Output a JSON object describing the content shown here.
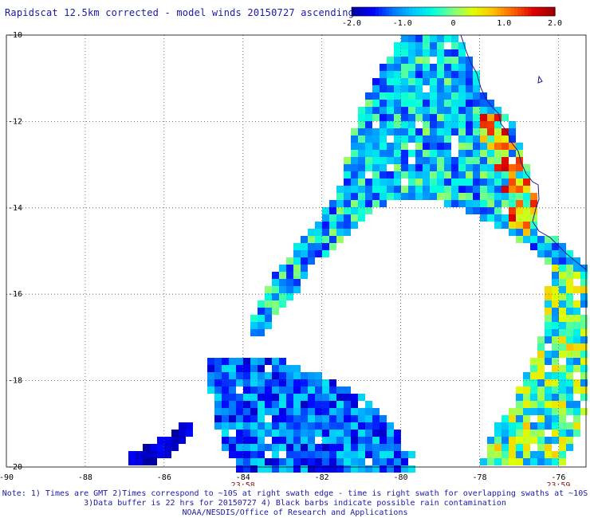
{
  "title": "Rapidscat 12.5km corrected - model winds 20150727 ascending",
  "colorbar": {
    "min": -2.0,
    "max": 2.0,
    "tick_labels": [
      "-2.0",
      "-1.0",
      "0",
      "1.0",
      "2.0"
    ],
    "tick_values": [
      -2.0,
      -1.0,
      0,
      1.0,
      2.0
    ],
    "colors": [
      "#0000a0",
      "#0000ff",
      "#0078ff",
      "#00c8ff",
      "#00ffe0",
      "#80ff80",
      "#e0ff00",
      "#ffc000",
      "#ff6000",
      "#e00000",
      "#a00000"
    ]
  },
  "map": {
    "lon_range": [
      -90,
      -75.3
    ],
    "lat_range": [
      -20,
      -10
    ],
    "lon_ticks": [
      -90,
      -88,
      -86,
      -84,
      -82,
      -80,
      -78,
      -76
    ],
    "lon_tick_labels": [
      "-90",
      "-88",
      "-86",
      "-84",
      "-82",
      "-80",
      "-78",
      "-76"
    ],
    "lat_ticks": [
      -10,
      -12,
      -14,
      -16,
      -18,
      -20
    ],
    "lat_tick_labels": [
      "-10",
      "-12",
      "-14",
      "-16",
      "-18",
      "-20"
    ],
    "time_labels": [
      {
        "lon": -84,
        "text": "23:58"
      },
      {
        "lon": -76,
        "text": "23:59"
      }
    ],
    "grid": "dotted"
  },
  "notes": [
    "Note: 1) Times are GMT 2)Times correspond to ~10S at right swath edge - time is right swath for overlapping swaths at ~10S",
    "3)Data buffer is 22 hrs for 20150727 4) Black barbs indicate possible rain contamination",
    "NOAA/NESDIS/Office of Research and Applications"
  ]
}
